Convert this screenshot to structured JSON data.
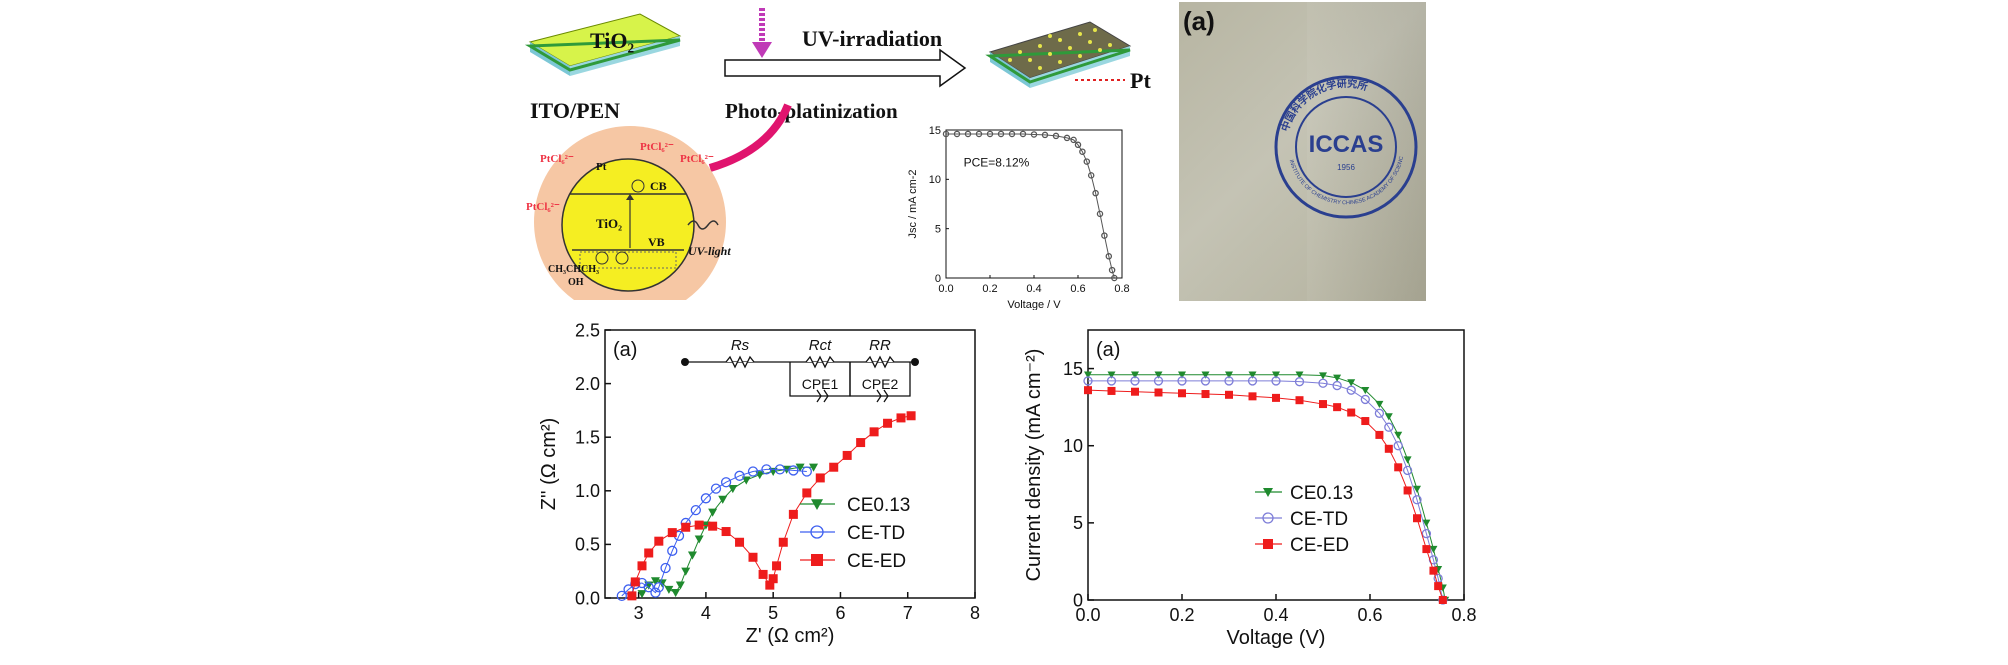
{
  "schematic": {
    "substrate_tio2": "TiO₂",
    "substrate_label": "ITO/PEN",
    "arrow_top": "UV-irradiation",
    "arrow_bottom": "Photo-platinization",
    "pt_label": "Pt",
    "circle": {
      "ptcl": "PtCl₆²⁻",
      "pt": "Pt",
      "cb": "CB",
      "vb": "VB",
      "tio2": "TiO₂",
      "uv_light": "UV-light",
      "alcohol": "CH₃CHCH₃",
      "oh": "OH"
    }
  },
  "photo": {
    "panel_label": "(a)",
    "logo_text": "ICCAS",
    "logo_year": "1956",
    "logo_ring_cn": "中国科学院化学研究所",
    "logo_ring_en": "INSTITUTE OF CHEMISTRY  CHINESE ACADEMY OF SCIENCES"
  },
  "chart_data": [
    {
      "type": "scatter",
      "id": "inset-jv",
      "xlabel": "Voltage / V",
      "ylabel": "Jsc / mA cm-2",
      "xlim": [
        0.0,
        0.8
      ],
      "ylim": [
        0,
        15
      ],
      "xticks": [
        "0.0",
        "0.2",
        "0.4",
        "0.6",
        "0.8"
      ],
      "yticks": [
        "0",
        "5",
        "10",
        "15"
      ],
      "annotation": "PCE=8.12%",
      "series": [
        {
          "x": [
            0.0,
            0.05,
            0.1,
            0.15,
            0.2,
            0.25,
            0.3,
            0.35,
            0.4,
            0.45,
            0.5,
            0.55,
            0.58,
            0.6,
            0.62,
            0.64,
            0.66,
            0.68,
            0.7,
            0.72,
            0.74,
            0.755,
            0.765
          ],
          "y": [
            14.6,
            14.6,
            14.6,
            14.6,
            14.6,
            14.6,
            14.6,
            14.6,
            14.55,
            14.5,
            14.4,
            14.2,
            14.0,
            13.5,
            12.8,
            11.8,
            10.4,
            8.6,
            6.5,
            4.3,
            2.2,
            0.8,
            0.0
          ]
        }
      ]
    },
    {
      "type": "scatter",
      "id": "nyquist",
      "panel_label": "(a)",
      "xlabel": "Z' (Ω cm²)",
      "ylabel": "Z'' (Ω cm²)",
      "xlim": [
        2.5,
        8
      ],
      "ylim": [
        0,
        2.5
      ],
      "xticks": [
        "3",
        "4",
        "5",
        "6",
        "7",
        "8"
      ],
      "yticks": [
        "0.0",
        "0.5",
        "1.0",
        "1.5",
        "2.0",
        "2.5"
      ],
      "circuit_labels": [
        "Rs",
        "Rct",
        "RR",
        "CPE1",
        "CPE2"
      ],
      "legend_position": "center-right",
      "series": [
        {
          "name": "CE0.13",
          "color": "#1f8a2e",
          "marker": "triangle-down",
          "x": [
            3.05,
            3.15,
            3.25,
            3.35,
            3.45,
            3.55,
            3.62,
            3.7,
            3.8,
            3.9,
            4.0,
            4.1,
            4.25,
            4.4,
            4.6,
            4.8,
            5.0,
            5.2,
            5.4,
            5.6
          ],
          "y": [
            0.04,
            0.12,
            0.16,
            0.14,
            0.08,
            0.05,
            0.12,
            0.25,
            0.4,
            0.55,
            0.68,
            0.8,
            0.92,
            1.02,
            1.1,
            1.15,
            1.18,
            1.2,
            1.22,
            1.22
          ]
        },
        {
          "name": "CE-TD",
          "color": "#3d5ff0",
          "marker": "circle-open",
          "x": [
            2.75,
            2.85,
            2.95,
            3.05,
            3.15,
            3.25,
            3.3,
            3.4,
            3.5,
            3.6,
            3.7,
            3.85,
            4.0,
            4.15,
            4.3,
            4.5,
            4.7,
            4.9,
            5.1,
            5.3,
            5.5
          ],
          "y": [
            0.02,
            0.08,
            0.13,
            0.14,
            0.1,
            0.05,
            0.1,
            0.28,
            0.44,
            0.58,
            0.7,
            0.82,
            0.93,
            1.02,
            1.08,
            1.14,
            1.18,
            1.2,
            1.2,
            1.19,
            1.18
          ]
        },
        {
          "name": "CE-ED",
          "color": "#ee1c1c",
          "marker": "square",
          "x": [
            2.9,
            2.95,
            3.05,
            3.15,
            3.3,
            3.5,
            3.7,
            3.9,
            4.1,
            4.3,
            4.5,
            4.7,
            4.85,
            4.95,
            5.0,
            5.05,
            5.15,
            5.3,
            5.5,
            5.7,
            5.9,
            6.1,
            6.3,
            6.5,
            6.7,
            6.9,
            7.05
          ],
          "y": [
            0.02,
            0.15,
            0.3,
            0.42,
            0.53,
            0.61,
            0.66,
            0.68,
            0.67,
            0.62,
            0.52,
            0.38,
            0.22,
            0.12,
            0.18,
            0.3,
            0.52,
            0.78,
            0.98,
            1.12,
            1.22,
            1.33,
            1.45,
            1.55,
            1.63,
            1.68,
            1.7
          ]
        }
      ]
    },
    {
      "type": "scatter",
      "id": "jv-main",
      "panel_label": "(a)",
      "xlabel": "Voltage (V)",
      "ylabel": "Current density (mA cm⁻²)",
      "xlim": [
        0.0,
        0.8
      ],
      "ylim": [
        0,
        17.5
      ],
      "xticks": [
        "0.0",
        "0.2",
        "0.4",
        "0.6",
        "0.8"
      ],
      "yticks": [
        "0",
        "5",
        "10",
        "15"
      ],
      "legend_position": "center-left",
      "series": [
        {
          "name": "CE0.13",
          "color": "#1f8a2e",
          "marker": "triangle-down",
          "x": [
            0.0,
            0.05,
            0.1,
            0.15,
            0.2,
            0.25,
            0.3,
            0.35,
            0.4,
            0.45,
            0.5,
            0.53,
            0.56,
            0.59,
            0.62,
            0.64,
            0.66,
            0.68,
            0.7,
            0.72,
            0.735,
            0.745,
            0.755,
            0.76
          ],
          "y": [
            14.6,
            14.6,
            14.6,
            14.6,
            14.6,
            14.6,
            14.6,
            14.6,
            14.6,
            14.6,
            14.55,
            14.4,
            14.1,
            13.6,
            12.7,
            11.9,
            10.7,
            9.1,
            7.2,
            5.0,
            3.3,
            2.0,
            0.8,
            0.0
          ]
        },
        {
          "name": "CE-TD",
          "color": "#7d7dd8",
          "marker": "circle-open",
          "x": [
            0.0,
            0.05,
            0.1,
            0.15,
            0.2,
            0.25,
            0.3,
            0.35,
            0.4,
            0.45,
            0.5,
            0.53,
            0.56,
            0.59,
            0.62,
            0.64,
            0.66,
            0.68,
            0.7,
            0.72,
            0.735,
            0.745,
            0.755
          ],
          "y": [
            14.2,
            14.2,
            14.2,
            14.2,
            14.2,
            14.2,
            14.2,
            14.2,
            14.2,
            14.15,
            14.05,
            13.9,
            13.6,
            13.0,
            12.1,
            11.2,
            10.0,
            8.4,
            6.5,
            4.3,
            2.6,
            1.4,
            0.0
          ]
        },
        {
          "name": "CE-ED",
          "color": "#ee1c1c",
          "marker": "square",
          "x": [
            0.0,
            0.05,
            0.1,
            0.15,
            0.2,
            0.25,
            0.3,
            0.35,
            0.4,
            0.45,
            0.5,
            0.53,
            0.56,
            0.59,
            0.62,
            0.64,
            0.66,
            0.68,
            0.7,
            0.72,
            0.735,
            0.745,
            0.755
          ],
          "y": [
            13.6,
            13.55,
            13.5,
            13.45,
            13.4,
            13.35,
            13.3,
            13.2,
            13.1,
            12.95,
            12.7,
            12.5,
            12.15,
            11.6,
            10.7,
            9.8,
            8.6,
            7.1,
            5.3,
            3.3,
            1.9,
            0.9,
            0.0
          ]
        }
      ]
    }
  ]
}
